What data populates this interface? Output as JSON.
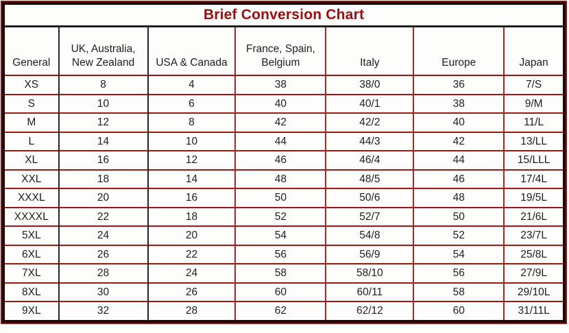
{
  "title": "Brief Conversion Chart",
  "chart_data": {
    "type": "table",
    "title": "Brief Conversion Chart",
    "columns": [
      "General",
      "UK, Australia,\nNew Zealand",
      "USA & Canada",
      "France, Spain,\nBelgium",
      "Italy",
      "Europe",
      "Japan"
    ],
    "rows": [
      [
        "XS",
        "8",
        "4",
        "38",
        "38/0",
        "36",
        "7/S"
      ],
      [
        "S",
        "10",
        "6",
        "40",
        "40/1",
        "38",
        "9/M"
      ],
      [
        "M",
        "12",
        "8",
        "42",
        "42/2",
        "40",
        "11/L"
      ],
      [
        "L",
        "14",
        "10",
        "44",
        "44/3",
        "42",
        "13/LL"
      ],
      [
        "XL",
        "16",
        "12",
        "46",
        "46/4",
        "44",
        "15/LLL"
      ],
      [
        "XXL",
        "18",
        "14",
        "48",
        "48/5",
        "46",
        "17/4L"
      ],
      [
        "XXXL",
        "20",
        "16",
        "50",
        "50/6",
        "48",
        "19/5L"
      ],
      [
        "XXXXL",
        "22",
        "18",
        "52",
        "52/7",
        "50",
        "21/6L"
      ],
      [
        "5XL",
        "24",
        "20",
        "54",
        "54/8",
        "52",
        "23/7L"
      ],
      [
        "6XL",
        "26",
        "22",
        "56",
        "56/9",
        "54",
        "25/8L"
      ],
      [
        "7XL",
        "28",
        "24",
        "58",
        "58/10",
        "56",
        "27/9L"
      ],
      [
        "8XL",
        "30",
        "26",
        "60",
        "60/11",
        "58",
        "29/10L"
      ],
      [
        "9XL",
        "32",
        "28",
        "62",
        "62/12",
        "60",
        "31/11L"
      ]
    ]
  },
  "colors": {
    "title_text": "#9e0c0c",
    "grid_red": "#9c1713",
    "grid_black": "#242424",
    "outer_frame_black": "#1e0707",
    "outer_ring_red": "#8c1212",
    "cell_text": "#1d1d1d",
    "background": "#fdfdfc"
  }
}
